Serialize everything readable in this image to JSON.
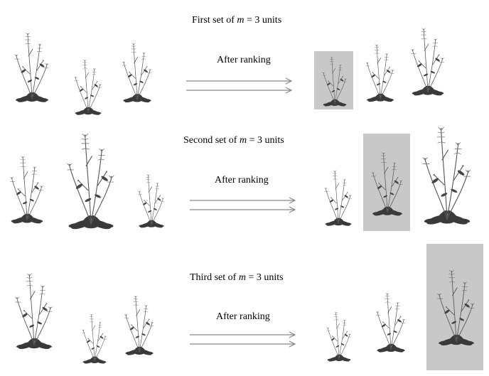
{
  "rows": [
    {
      "id": "first",
      "title_prefix": "First set of",
      "title_var": "m",
      "title_eq": "= 3",
      "title_suffix": "units",
      "arrow_label": "After ranking",
      "highlighted_rank": 1
    },
    {
      "id": "second",
      "title_prefix": "Second set of",
      "title_var": "m",
      "title_eq": "= 3",
      "title_suffix": "units",
      "arrow_label": "After ranking",
      "highlighted_rank": 2
    },
    {
      "id": "third",
      "title_prefix": "Third set of",
      "title_var": "m",
      "title_eq": "= 3",
      "title_suffix": "units",
      "arrow_label": "After ranking",
      "highlighted_rank": 3
    }
  ],
  "colors": {
    "highlight": "#c8c8c8",
    "arrow": "#888888",
    "plant_dark": "#333333",
    "plant_stem": "#555555"
  }
}
